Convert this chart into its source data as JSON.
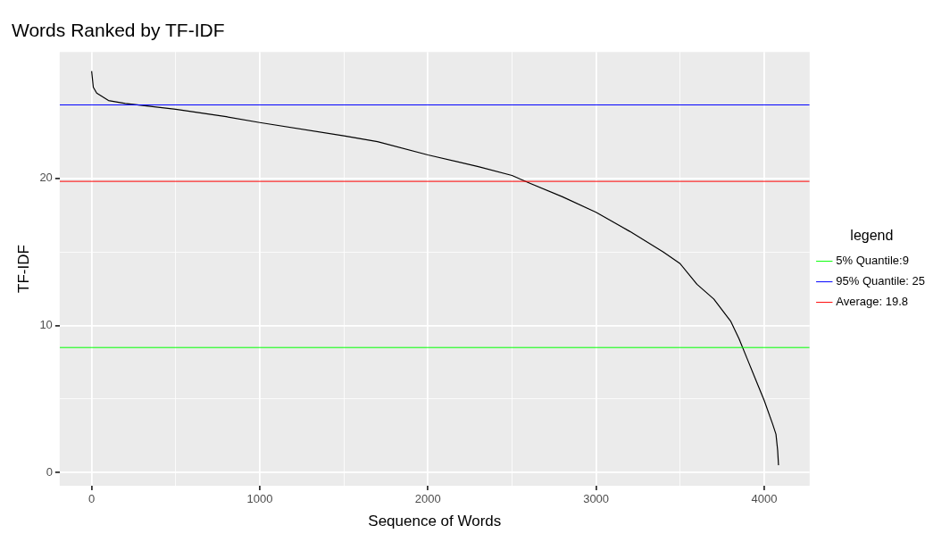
{
  "chart_data": {
    "type": "line",
    "title": "Words Ranked by TF-IDF",
    "xlabel": "Sequence of Words",
    "ylabel": "TF-IDF",
    "x": [
      0,
      10,
      30,
      100,
      200,
      500,
      800,
      1000,
      1500,
      1700,
      2000,
      2300,
      2500,
      2600,
      2800,
      3000,
      3200,
      3400,
      3500,
      3600,
      3700,
      3800,
      3850,
      3900,
      3950,
      4000,
      4050,
      4070,
      4080,
      4085
    ],
    "series": [
      {
        "color": "#000000",
        "values": [
          27.3,
          26.2,
          25.8,
          25.3,
          25.1,
          24.7,
          24.2,
          23.8,
          22.9,
          22.5,
          21.6,
          20.8,
          20.2,
          19.7,
          18.75,
          17.7,
          16.4,
          15.0,
          14.2,
          12.8,
          11.8,
          10.3,
          9.1,
          7.7,
          6.3,
          4.9,
          3.3,
          2.6,
          1.5,
          0.5
        ]
      }
    ],
    "xlim": [
      -190,
      4270
    ],
    "ylim": [
      -0.9,
      28.6
    ],
    "xticks": [
      0,
      {
        "value": 500,
        "label": null
      },
      1000,
      {
        "value": 1500,
        "label": null
      },
      2000,
      {
        "value": 2500,
        "label": null
      },
      3000,
      {
        "value": 3500,
        "label": null
      },
      4000
    ],
    "yticks": [
      0,
      {
        "value": 5,
        "label": null
      },
      10,
      {
        "value": 15,
        "label": null
      },
      20,
      {
        "value": 25,
        "label": null
      }
    ],
    "ref_lines": [
      {
        "axis": "y",
        "value": 8.5,
        "label": "5% Quantile:9",
        "color": "#00ff00"
      },
      {
        "axis": "y",
        "value": 25,
        "label": "95% Quantile: 25",
        "color": "#0000ff"
      },
      {
        "axis": "y",
        "value": 19.8,
        "label": "Average: 19.8",
        "color": "#ff0000"
      }
    ],
    "legend": "right",
    "legend_title": "legend",
    "grid": true,
    "marker": "none",
    "line_style": "solid"
  }
}
